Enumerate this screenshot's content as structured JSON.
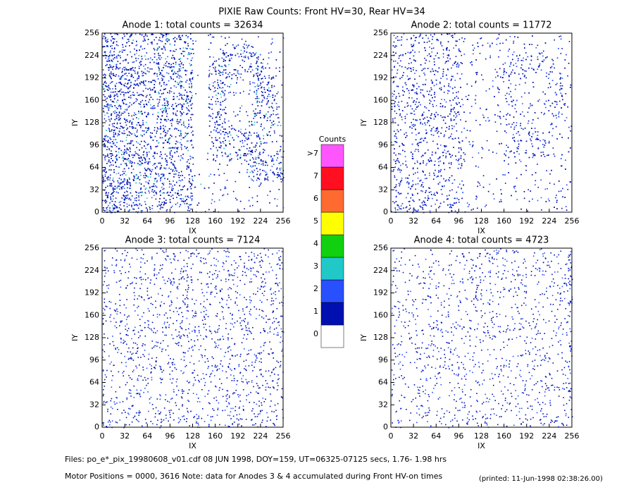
{
  "title": "PIXIE Raw Counts:  Front HV=30, Rear HV=34",
  "chart_data": [
    {
      "type": "heatmap",
      "title": "Anode 1: total counts = 32634",
      "xlabel": "IX",
      "ylabel": "IY",
      "xlim": [
        0,
        256
      ],
      "ylim": [
        0,
        256
      ],
      "xticks": [
        0,
        32,
        64,
        96,
        128,
        160,
        192,
        224,
        256
      ],
      "yticks": [
        0,
        32,
        64,
        96,
        128,
        160,
        192,
        224,
        256
      ]
    },
    {
      "type": "heatmap",
      "title": "Anode 2: total counts = 11772",
      "xlabel": "IX",
      "ylabel": "IY",
      "xlim": [
        0,
        256
      ],
      "ylim": [
        0,
        256
      ],
      "xticks": [
        0,
        32,
        64,
        96,
        128,
        160,
        192,
        224,
        256
      ],
      "yticks": [
        0,
        32,
        64,
        96,
        128,
        160,
        192,
        224,
        256
      ]
    },
    {
      "type": "heatmap",
      "title": "Anode 3: total counts = 7124",
      "xlabel": "IX",
      "ylabel": "IY",
      "xlim": [
        0,
        256
      ],
      "ylim": [
        0,
        256
      ],
      "xticks": [
        0,
        32,
        64,
        96,
        128,
        160,
        192,
        224,
        256
      ],
      "yticks": [
        0,
        32,
        64,
        96,
        128,
        160,
        192,
        224,
        256
      ]
    },
    {
      "type": "heatmap",
      "title": "Anode 4: total counts = 4723",
      "xlabel": "IX",
      "ylabel": "IY",
      "xlim": [
        0,
        256
      ],
      "ylim": [
        0,
        256
      ],
      "xticks": [
        0,
        32,
        64,
        96,
        128,
        160,
        192,
        224,
        256
      ],
      "yticks": [
        0,
        32,
        64,
        96,
        128,
        160,
        192,
        224,
        256
      ]
    }
  ],
  "colorbar": {
    "title": "Counts",
    "ticks": [
      0,
      1,
      2,
      3,
      4,
      5,
      6,
      7,
      {
        "value": 8,
        "label": ">7"
      }
    ],
    "colors": [
      "#ffffff",
      "#0010b0",
      "#2850ff",
      "#20c8c8",
      "#10d010",
      "#ffff00",
      "#ff6a30",
      "#ff0f20",
      "#ff55ff"
    ]
  },
  "footer": {
    "files": "Files: po_e*_pix_19980608_v01.cdf    08 JUN 1998, DOY=159, UT=06325-07125 secs,  1.76- 1.98 hrs",
    "motor": "Motor Positions = 0000, 3616   Note: data for Anodes 3 & 4 accumulated during Front HV-on times",
    "printed": "(printed: 11-Jun-1998 02:38:26.00)"
  }
}
